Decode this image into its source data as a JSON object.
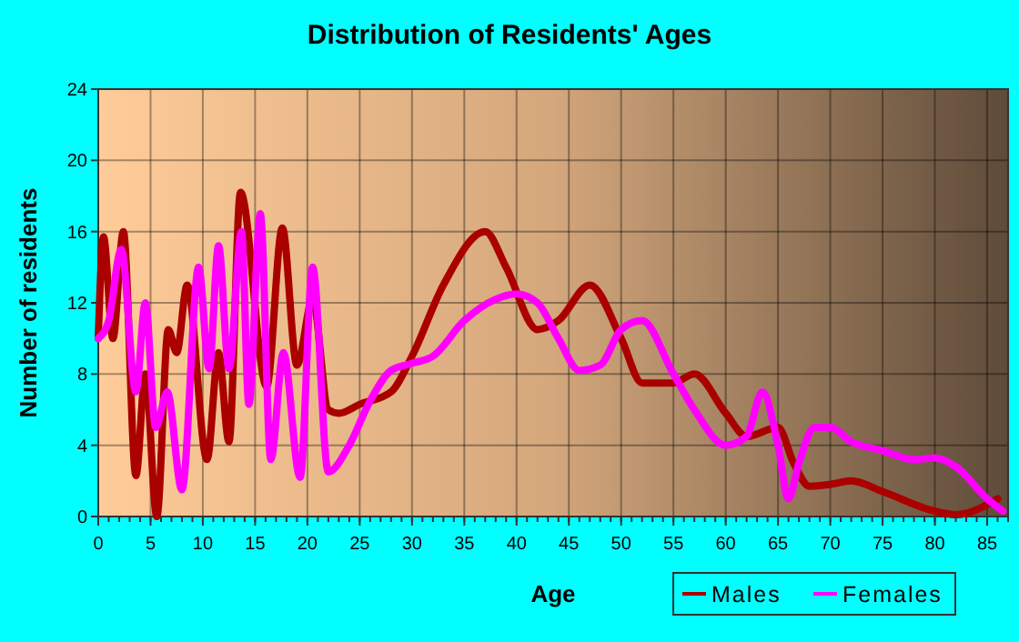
{
  "chart_data": {
    "type": "line",
    "title": "Distribution of Residents' Ages",
    "xlabel": "Age",
    "ylabel": "Number of residents",
    "xlim": [
      0,
      87
    ],
    "ylim": [
      0,
      24
    ],
    "xticks": [
      0,
      5,
      10,
      15,
      20,
      25,
      30,
      35,
      40,
      45,
      50,
      55,
      60,
      65,
      70,
      75,
      80,
      85
    ],
    "yticks": [
      0,
      4,
      8,
      12,
      16,
      20,
      24
    ],
    "grid": true,
    "legend": "bottom right",
    "marker": "none",
    "line_style": "solid",
    "series": [
      {
        "name": "Males",
        "color": "#aa0000",
        "x": [
          0,
          0.5,
          1.4,
          2.4,
          3.6,
          4.5,
          5.6,
          6.7,
          7.5,
          8.5,
          10.4,
          11.5,
          12.5,
          13.6,
          16.1,
          17.6,
          19,
          20.5,
          22,
          23,
          25,
          28,
          30,
          33,
          37,
          39,
          42,
          44,
          47,
          50,
          52,
          55,
          57,
          60,
          62,
          65,
          66.5,
          68,
          70,
          72,
          75,
          80,
          82,
          86
        ],
        "values": [
          10,
          15.7,
          10,
          16,
          2.3,
          8,
          0,
          10.5,
          9.2,
          13,
          3.2,
          9.2,
          4.2,
          18.2,
          7.3,
          16.2,
          8.5,
          12.2,
          6,
          5.8,
          6.3,
          7,
          9,
          13,
          16,
          14,
          10.5,
          11,
          13,
          10,
          7.5,
          7.5,
          8,
          5.8,
          4.5,
          5,
          3,
          1.7,
          1.8,
          2,
          1.4,
          0.3,
          0.1,
          1
        ]
      },
      {
        "name": "Females",
        "color": "#ff00ff",
        "x": [
          0,
          1,
          2.2,
          3.6,
          4.5,
          5.5,
          6.6,
          8,
          9.6,
          10.6,
          11.5,
          12.5,
          13.7,
          14.4,
          15.5,
          16.5,
          17.7,
          19.3,
          20.5,
          22,
          24,
          26,
          28,
          30,
          32,
          35,
          38,
          40,
          42,
          44,
          46,
          48,
          50,
          52,
          55,
          57,
          60,
          62,
          63.5,
          65,
          66,
          67,
          68.5,
          70,
          72,
          75,
          78,
          80,
          82,
          85,
          86.5
        ],
        "values": [
          10,
          11,
          15,
          7,
          12,
          5,
          7,
          1.5,
          14,
          8.3,
          15.2,
          8.3,
          16,
          6.3,
          17,
          3.2,
          9.2,
          2.2,
          14,
          2.5,
          4,
          6.5,
          8.2,
          8.6,
          9,
          11,
          12.2,
          12.5,
          12,
          10,
          8.2,
          8.5,
          10.5,
          11,
          8,
          6,
          4,
          4.5,
          7,
          4,
          1,
          3,
          5,
          5,
          4.2,
          3.7,
          3.2,
          3.3,
          2.8,
          1,
          0.3
        ]
      }
    ]
  }
}
